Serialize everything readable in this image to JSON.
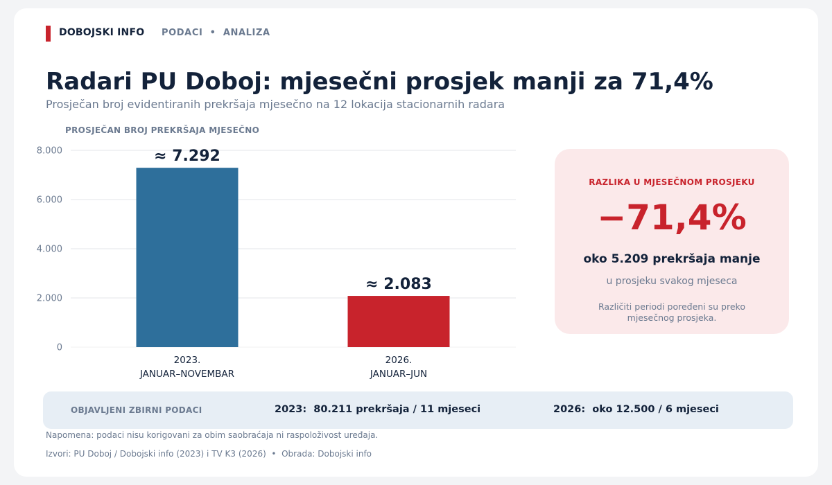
{
  "header": {
    "brand": "DOBOJSKI INFO",
    "section": "PODACI  •  ANALIZA"
  },
  "title": "Radari PU Doboj: mjesečni prosjek manji za 71,4%",
  "subtitle": "Prosječan broj evidentiranih prekršaja mjesečno na 12 lokacija stacionarnih radara",
  "chart_data": {
    "type": "bar",
    "title": "PROSJEČAN BROJ PREKRŠAJA MJESEČNO",
    "categories": [
      [
        "2023.",
        "JANUAR–NOVEMBAR"
      ],
      [
        "2026.",
        "JANUAR–JUN"
      ]
    ],
    "values": [
      7292,
      2083
    ],
    "data_labels": [
      "≈ 7.292",
      "≈ 2.083"
    ],
    "colors": [
      "#2e6f9b",
      "#c8232c"
    ],
    "ylim": [
      0,
      8000
    ],
    "yticks": [
      0,
      2000,
      4000,
      6000,
      8000
    ],
    "ytick_labels": [
      "0",
      "2.000",
      "4.000",
      "6.000",
      "8.000"
    ],
    "grid": true,
    "xlabel": "",
    "ylabel": ""
  },
  "callout": {
    "caption": "RAZLIKA U MJESEČNOM PROSJEKU",
    "value": "−71,4%",
    "line1": "oko 5.209 prekršaja manje",
    "line2": "u prosjeku svakog mjeseca",
    "note": "Različiti periodi poređeni su preko mjesečnog prosjeka."
  },
  "summary": {
    "label": "OBJAVLJENI ZBIRNI PODACI",
    "item_2023": "2023:  80.211 prekršaja / 11 mjeseci",
    "item_2026": "2026:  oko 12.500 / 6 mjeseci"
  },
  "footnote": "Napomena: podaci nisu korigovani za obim saobraćaja ni raspoloživost uređaja.",
  "source": "Izvori: PU Doboj / Dobojski info (2023) i TV K3 (2026)  •  Obrada: Dobojski info",
  "colors": {
    "accent_red": "#c8232c",
    "bar_blue": "#2e6f9b",
    "text_dark": "#13223a",
    "text_muted": "#6b7a90"
  }
}
